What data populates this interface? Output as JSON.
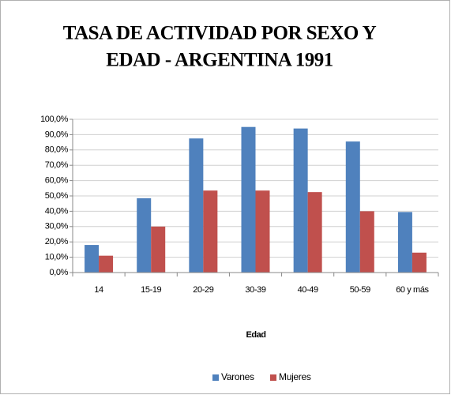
{
  "chart_data": {
    "type": "bar",
    "title": [
      "TASA DE ACTIVIDAD POR SEXO Y",
      "EDAD - ARGENTINA 1991"
    ],
    "x_label": "Edad",
    "categories": [
      "14",
      "15-19",
      "20-29",
      "30-39",
      "40-49",
      "50-59",
      "60 y más"
    ],
    "series": [
      {
        "name": "Varones",
        "color": "#4f81bd",
        "values": [
          18,
          48.5,
          87.5,
          95,
          94,
          85.5,
          39.5
        ]
      },
      {
        "name": "Mujeres",
        "color": "#c0504d",
        "values": [
          11,
          30,
          53.5,
          53.5,
          52.5,
          40,
          13
        ]
      }
    ],
    "ylim": [
      0,
      100
    ],
    "yticks": [
      {
        "value": 0,
        "label": "0,0%"
      },
      {
        "value": 10,
        "label": "10,0%"
      },
      {
        "value": 20,
        "label": "20,0%"
      },
      {
        "value": 30,
        "label": "30,0%"
      },
      {
        "value": 40,
        "label": "40,0%"
      },
      {
        "value": 50,
        "label": "50,0%"
      },
      {
        "value": 60,
        "label": "60,0%"
      },
      {
        "value": 70,
        "label": "70,0%"
      },
      {
        "value": 80,
        "label": "80,0%"
      },
      {
        "value": 90,
        "label": "90,0%"
      },
      {
        "value": 100,
        "label": "100,0%"
      }
    ],
    "grid": true,
    "legend": "bottom"
  }
}
